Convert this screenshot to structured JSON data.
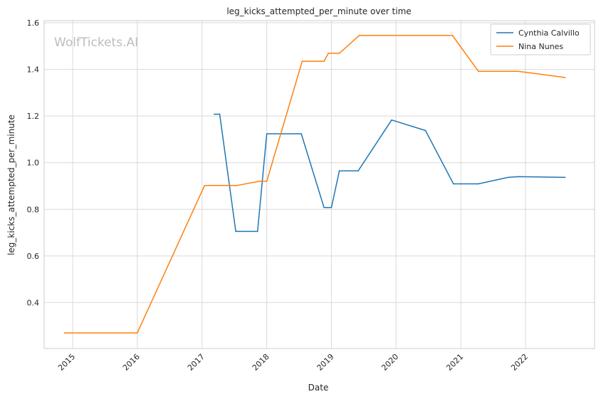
{
  "chart_data": {
    "type": "line",
    "title": "leg_kicks_attempted_per_minute over time",
    "xlabel": "Date",
    "ylabel": "leg_kicks_attempted_per_minute",
    "watermark": "WolfTickets.AI",
    "grid": true,
    "legend_position": "top-right",
    "xlim": [
      "2014-07-24",
      "2023-01-26"
    ],
    "ylim": [
      0.2,
      1.6
    ],
    "x_ticks": [
      {
        "date": "2015-01-01",
        "label": "2015"
      },
      {
        "date": "2016-01-01",
        "label": "2016"
      },
      {
        "date": "2017-01-01",
        "label": "2017"
      },
      {
        "date": "2018-01-01",
        "label": "2018"
      },
      {
        "date": "2019-01-01",
        "label": "2019"
      },
      {
        "date": "2020-01-01",
        "label": "2020"
      },
      {
        "date": "2021-01-01",
        "label": "2021"
      },
      {
        "date": "2022-01-01",
        "label": "2022"
      }
    ],
    "y_ticks": [
      {
        "value": 0.4,
        "label": "0.4"
      },
      {
        "value": 0.6,
        "label": "0.6"
      },
      {
        "value": 0.8,
        "label": "0.8"
      },
      {
        "value": 1.0,
        "label": "1.0"
      },
      {
        "value": 1.2,
        "label": "1.2"
      },
      {
        "value": 1.4,
        "label": "1.4"
      },
      {
        "value": 1.6,
        "label": "1.6"
      }
    ],
    "series": [
      {
        "name": "Cynthia Calvillo",
        "color": "#1f77b4",
        "points": [
          {
            "x": "2017-03-10",
            "y": 1.208
          },
          {
            "x": "2017-04-10",
            "y": 1.208
          },
          {
            "x": "2017-07-10",
            "y": 0.705
          },
          {
            "x": "2017-11-10",
            "y": 0.705
          },
          {
            "x": "2018-01-01",
            "y": 1.124
          },
          {
            "x": "2018-07-15",
            "y": 1.124
          },
          {
            "x": "2018-11-20",
            "y": 0.808
          },
          {
            "x": "2019-01-01",
            "y": 0.808
          },
          {
            "x": "2019-02-15",
            "y": 0.965
          },
          {
            "x": "2019-06-01",
            "y": 0.965
          },
          {
            "x": "2019-12-07",
            "y": 1.183
          },
          {
            "x": "2020-06-15",
            "y": 1.138
          },
          {
            "x": "2020-11-20",
            "y": 0.909
          },
          {
            "x": "2021-04-10",
            "y": 0.909
          },
          {
            "x": "2021-09-25",
            "y": 0.937
          },
          {
            "x": "2021-11-20",
            "y": 0.94
          },
          {
            "x": "2022-08-13",
            "y": 0.937
          }
        ]
      },
      {
        "name": "Nina Nunes",
        "color": "#ff7f0e",
        "points": [
          {
            "x": "2014-11-15",
            "y": 0.27
          },
          {
            "x": "2016-01-01",
            "y": 0.27
          },
          {
            "x": "2017-01-15",
            "y": 0.902
          },
          {
            "x": "2017-07-15",
            "y": 0.902
          },
          {
            "x": "2017-11-20",
            "y": 0.92
          },
          {
            "x": "2018-01-01",
            "y": 0.92
          },
          {
            "x": "2018-07-20",
            "y": 1.435
          },
          {
            "x": "2018-11-20",
            "y": 1.435
          },
          {
            "x": "2018-12-15",
            "y": 1.469
          },
          {
            "x": "2019-02-15",
            "y": 1.469
          },
          {
            "x": "2019-06-08",
            "y": 1.546
          },
          {
            "x": "2020-11-14",
            "y": 1.546
          },
          {
            "x": "2021-04-10",
            "y": 1.392
          },
          {
            "x": "2021-11-20",
            "y": 1.392
          },
          {
            "x": "2022-08-13",
            "y": 1.365
          }
        ]
      }
    ]
  }
}
